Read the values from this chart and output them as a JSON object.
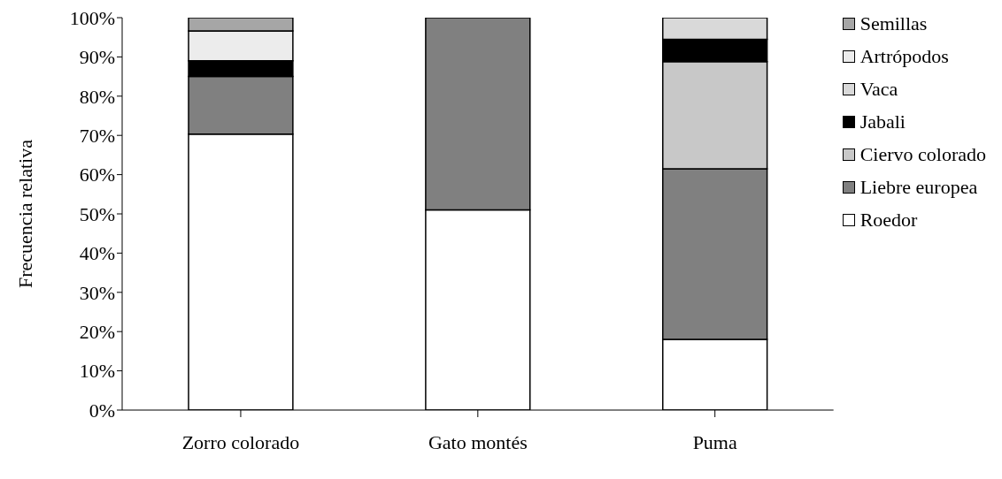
{
  "chart_data": {
    "type": "bar",
    "stacked": true,
    "ylabel": "Frecuencia relativa",
    "categories": [
      "Zorro colorado",
      "Gato montés",
      "Puma"
    ],
    "series": [
      {
        "name": "Roedor",
        "color": "#ffffff",
        "values": [
          70.3,
          51,
          18
        ]
      },
      {
        "name": "Liebre europea",
        "color": "#808080",
        "values": [
          14.7,
          49,
          43.5
        ]
      },
      {
        "name": "Ciervo colorado",
        "color": "#c8c8c8",
        "values": [
          0,
          0,
          27.3
        ]
      },
      {
        "name": "Jabali",
        "color": "#000000",
        "values": [
          4,
          0,
          5.7
        ]
      },
      {
        "name": "Vaca",
        "color": "#d9d9d9",
        "values": [
          0,
          0,
          5.5
        ]
      },
      {
        "name": "Artrópodos",
        "color": "#ececec",
        "values": [
          7.6,
          0,
          0
        ]
      },
      {
        "name": "Semillas",
        "color": "#a6a6a6",
        "values": [
          3.4,
          0,
          0
        ]
      }
    ],
    "ylim": [
      0,
      100
    ],
    "yticks": [
      {
        "value": 0,
        "label": "0%"
      },
      {
        "value": 10,
        "label": "10%"
      },
      {
        "value": 20,
        "label": "20%"
      },
      {
        "value": 30,
        "label": "30%"
      },
      {
        "value": 40,
        "label": "40%"
      },
      {
        "value": 50,
        "label": "50%"
      },
      {
        "value": 60,
        "label": "60%"
      },
      {
        "value": 70,
        "label": "70%"
      },
      {
        "value": 80,
        "label": "80%"
      },
      {
        "value": 90,
        "label": "90%"
      },
      {
        "value": 100,
        "label": "100%"
      }
    ],
    "grid": false,
    "legend": "right"
  }
}
